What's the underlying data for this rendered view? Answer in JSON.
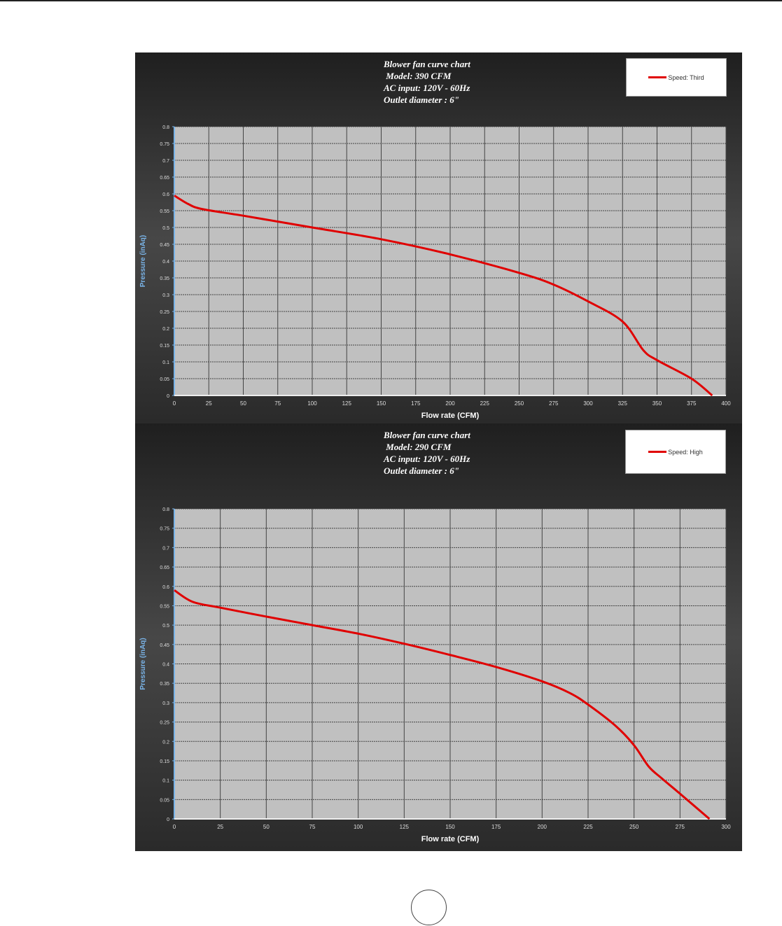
{
  "chart_data": [
    {
      "type": "line",
      "title_lines": [
        "Blower fan curve chart",
        " Model: 390 CFM",
        "AC input: 120V - 60Hz",
        "Outlet diameter : 6\""
      ],
      "xlabel": "Flow rate (CFM)",
      "ylabel": "Pressure (inAq)",
      "xlim": [
        0,
        400
      ],
      "ylim": [
        0,
        0.8
      ],
      "xticks": [
        "0",
        "25",
        "50",
        "75",
        "100",
        "125",
        "150",
        "175",
        "200",
        "225",
        "250",
        "275",
        "300",
        "325",
        "350",
        "375",
        "400"
      ],
      "yticks": [
        "0",
        "0.05",
        "0.1",
        "0.15",
        "0.2",
        "0.25",
        "0.3",
        "0.35",
        "0.4",
        "0.45",
        "0.5",
        "0.55",
        "0.6",
        "0.65",
        "0.7",
        "0.75",
        "0.8"
      ],
      "grid": true,
      "legend_position": "top-right",
      "series": [
        {
          "name": "Speed: Third",
          "color": "#e00000",
          "x": [
            0,
            10,
            20,
            50,
            100,
            150,
            200,
            250,
            275,
            300,
            325,
            340,
            350,
            375,
            390
          ],
          "y": [
            0.595,
            0.57,
            0.555,
            0.535,
            0.5,
            0.465,
            0.42,
            0.365,
            0.33,
            0.28,
            0.22,
            0.135,
            0.105,
            0.05,
            0.0
          ]
        }
      ]
    },
    {
      "type": "line",
      "title_lines": [
        "Blower fan curve chart",
        " Model: 290 CFM",
        "AC input: 120V - 60Hz",
        "Outlet diameter : 6\""
      ],
      "xlabel": "Flow rate (CFM)",
      "ylabel": "Pressure (inAq)",
      "xlim": [
        0,
        300
      ],
      "ylim": [
        0,
        0.8
      ],
      "xticks": [
        "0",
        "25",
        "50",
        "75",
        "100",
        "125",
        "150",
        "175",
        "200",
        "225",
        "250",
        "275",
        "300"
      ],
      "yticks": [
        "0",
        "0.05",
        "0.1",
        "0.15",
        "0.2",
        "0.25",
        "0.3",
        "0.35",
        "0.4",
        "0.45",
        "0.5",
        "0.55",
        "0.6",
        "0.65",
        "0.7",
        "0.75",
        "0.8"
      ],
      "grid": true,
      "legend_position": "top-right",
      "series": [
        {
          "name": "Speed: High",
          "color": "#e00000",
          "x": [
            0,
            10,
            25,
            50,
            75,
            100,
            125,
            150,
            175,
            200,
            215,
            225,
            240,
            250,
            258,
            265,
            275,
            291
          ],
          "y": [
            0.59,
            0.56,
            0.545,
            0.522,
            0.5,
            0.478,
            0.452,
            0.423,
            0.392,
            0.355,
            0.325,
            0.295,
            0.24,
            0.19,
            0.135,
            0.105,
            0.065,
            0.0
          ]
        }
      ]
    }
  ]
}
